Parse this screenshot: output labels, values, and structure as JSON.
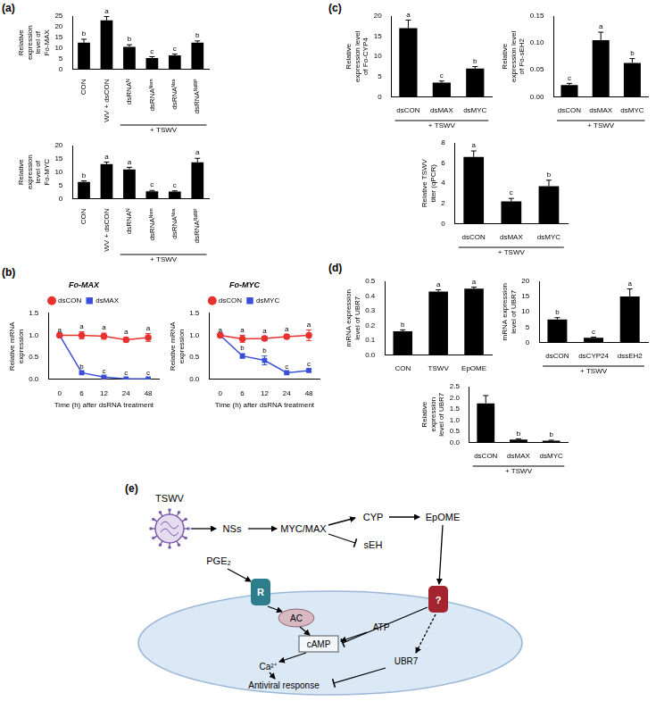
{
  "panel_labels": [
    "(a)",
    "(b)",
    "(c)",
    "(d)",
    "(e)"
  ],
  "chart_data": [
    {
      "type": "bar",
      "y_label": "Relative expression level of Fo-MAX",
      "categories": [
        "CON",
        "TSWV + dsCON",
        "dsRNAᴺ",
        "dsRNAᴺˢᵐ",
        "dsRNAᴺˢˢ",
        "dsRNAᴿᵈᴿᴾ"
      ],
      "values": [
        12.5,
        23,
        10.5,
        5.2,
        6.5,
        12.5
      ],
      "errors": [
        1.6,
        1.8,
        1.0,
        0.7,
        0.6,
        0.8
      ],
      "letters": [
        "b",
        "a",
        "b",
        "c",
        "c",
        "b"
      ],
      "group_label": {
        "text": "+ TSWV",
        "categories": [
          "dsRNAᴺ",
          "dsRNAᴺˢᵐ",
          "dsRNAᴺˢˢ",
          "dsRNAᴿᵈᴿᴾ"
        ]
      },
      "color": "#000000",
      "ylim": [
        0,
        25
      ],
      "yticks": [
        0,
        5,
        10,
        15,
        20,
        25
      ],
      "grid": false
    },
    {
      "type": "bar",
      "y_label": "Relative expression level of Fo-MYC",
      "categories": [
        "CON",
        "TSWV + dsCON",
        "dsRNAᴺ",
        "dsRNAᴺˢᵐ",
        "dsRNAᴺˢˢ",
        "dsRNAᴿᵈᴿᴾ"
      ],
      "values": [
        6.3,
        13,
        11,
        2.8,
        2.7,
        13.7
      ],
      "errors": [
        0.4,
        0.8,
        0.8,
        0.3,
        0.25,
        1.5
      ],
      "letters": [
        "b",
        "a",
        "a",
        "c",
        "c",
        "a"
      ],
      "group_label": {
        "text": "+ TSWV",
        "categories": [
          "dsRNAᴺ",
          "dsRNAᴺˢᵐ",
          "dsRNAᴺˢˢ",
          "dsRNAᴿᵈᴿᴾ"
        ]
      },
      "color": "#000000",
      "ylim": [
        0,
        20
      ],
      "yticks": [
        0,
        5,
        10,
        15,
        20
      ],
      "grid": false
    },
    {
      "type": "line",
      "title": "Fo-MAX",
      "y_label": "Relative mRNA expression",
      "x_label": "Time (h) after dsRNA treatment",
      "categories": [
        "0",
        "6",
        "12",
        "24",
        "48"
      ],
      "series": [
        {
          "name": "dsCON",
          "color": "#e8312f",
          "marker": "circle",
          "line_style": "solid",
          "values": [
            1,
            1.0,
            0.98,
            0.9,
            0.95
          ],
          "errors": [
            0,
            0.08,
            0.07,
            0.05,
            0.09
          ],
          "letters": [
            "a",
            "a",
            "a",
            "a",
            "a"
          ]
        },
        {
          "name": "dsMAX",
          "color": "#3b4fd8",
          "marker": "square",
          "line_style": "solid",
          "values": [
            1,
            0.15,
            0.05,
            0.01,
            0.01
          ],
          "errors": [
            0,
            0.02,
            0.01,
            0.005,
            0.005
          ],
          "letters": [
            null,
            "b",
            "c",
            "c",
            "c"
          ]
        }
      ],
      "ylim": [
        0,
        1.5
      ],
      "yticks": [
        {
          "value": 0,
          "label": "0.0"
        },
        0.5,
        {
          "value": 1,
          "label": "1.0"
        },
        1.5
      ],
      "legend": "top",
      "grid": false
    },
    {
      "type": "line",
      "title": "Fo-MYC",
      "y_label": "Relative mRNA expression",
      "x_label": "Time (h) after dsRNA treatment",
      "categories": [
        "0",
        "6",
        "12",
        "24",
        "48"
      ],
      "series": [
        {
          "name": "dsCON",
          "color": "#e8312f",
          "marker": "circle",
          "line_style": "solid",
          "values": [
            1,
            0.92,
            0.93,
            0.97,
            1.0
          ],
          "errors": [
            0,
            0.08,
            0.05,
            0.04,
            0.12
          ],
          "letters": [
            "a",
            "a",
            "a",
            "a",
            "a"
          ]
        },
        {
          "name": "dsMYC",
          "color": "#3b4fd8",
          "marker": "square",
          "line_style": "solid",
          "values": [
            1,
            0.53,
            0.43,
            0.15,
            0.2
          ],
          "errors": [
            0,
            0.05,
            0.1,
            0.02,
            0.03
          ],
          "letters": [
            null,
            "b",
            "b",
            "c",
            "c"
          ]
        }
      ],
      "ylim": [
        0,
        1.5
      ],
      "yticks": [
        {
          "value": 0,
          "label": "0.0"
        },
        0.5,
        {
          "value": 1,
          "label": "1.0"
        },
        1.5
      ],
      "legend": "top",
      "grid": false
    },
    {
      "type": "bar",
      "y_label": "Relative expression level of Fo-CYP4",
      "categories": [
        "dsCON",
        "dsMAX",
        "dsMYC"
      ],
      "values": [
        17,
        3.5,
        7
      ],
      "errors": [
        2,
        0.4,
        0.5
      ],
      "letters": [
        "a",
        "c",
        "b"
      ],
      "group_label": {
        "text": "+ TSWV",
        "categories": [
          "dsCON",
          "dsMAX",
          "dsMYC"
        ]
      },
      "color": "#000000",
      "ylim": [
        0,
        20
      ],
      "yticks": [
        0,
        5,
        10,
        15,
        20
      ],
      "grid": false
    },
    {
      "type": "bar",
      "y_label": "Relative expression level of Fo-sEH2",
      "categories": [
        "dsCON",
        "dsMAX",
        "dsMYC"
      ],
      "values": [
        0.022,
        0.105,
        0.063
      ],
      "errors": [
        0.003,
        0.015,
        0.008
      ],
      "letters": [
        "c",
        "a",
        "b"
      ],
      "group_label": {
        "text": "+ TSWV",
        "categories": [
          "dsCON",
          "dsMAX",
          "dsMYC"
        ]
      },
      "color": "#000000",
      "ylim": [
        0,
        0.15
      ],
      "yticks": [
        {
          "value": 0,
          "label": "0.00"
        },
        0.05,
        {
          "value": 0.1,
          "label": "0.10"
        },
        0.15
      ],
      "grid": false
    },
    {
      "type": "bar",
      "y_label": "Relative TSWV titer (qPCR)",
      "categories": [
        "dsCON",
        "dsMAX",
        "dsMYC"
      ],
      "values": [
        6.6,
        2.2,
        3.7
      ],
      "errors": [
        0.6,
        0.3,
        0.6
      ],
      "letters": [
        "a",
        "c",
        "b"
      ],
      "group_label": {
        "text": "+ TSWV",
        "categories": [
          "dsCON",
          "dsMAX",
          "dsMYC"
        ]
      },
      "color": "#000000",
      "ylim": [
        0,
        8
      ],
      "yticks": [
        0,
        2,
        4,
        6,
        8
      ],
      "grid": false
    },
    {
      "type": "bar",
      "y_label": "mRNA expression level of UBR7",
      "categories": [
        "CON",
        "TSWV",
        "EpOME"
      ],
      "values": [
        0.16,
        0.43,
        0.45
      ],
      "errors": [
        0.01,
        0.012,
        0.01
      ],
      "letters": [
        "b",
        "a",
        "a"
      ],
      "color": "#000000",
      "ylim": [
        0,
        0.5
      ],
      "yticks": [
        {
          "value": 0,
          "label": "0.0"
        },
        0.1,
        0.2,
        0.3,
        0.4,
        0.5
      ],
      "grid": false
    },
    {
      "type": "bar",
      "y_label": "mRNA expression level of UBR7",
      "categories": [
        "dsCON",
        "dsCYP24",
        "dssEH2"
      ],
      "values": [
        7.5,
        1.5,
        15
      ],
      "errors": [
        0.6,
        0.2,
        2.5
      ],
      "letters": [
        "b",
        "c",
        "a"
      ],
      "group_label": {
        "text": "+ TSWV",
        "categories": [
          "dsCON",
          "dsCYP24",
          "dssEH2"
        ]
      },
      "color": "#000000",
      "ylim": [
        0,
        20
      ],
      "yticks": [
        0,
        5,
        10,
        15,
        20
      ],
      "grid": false
    },
    {
      "type": "bar",
      "y_label": "Relative expression level of UBR7",
      "categories": [
        "dsCON",
        "dsMAX",
        "dsMYC"
      ],
      "values": [
        1.75,
        0.13,
        0.08
      ],
      "errors": [
        0.35,
        0.03,
        0.02
      ],
      "letters": [
        null,
        "b",
        "b"
      ],
      "group_label": {
        "text": "+ TSWV",
        "categories": [
          "dsCON",
          "dsMAX",
          "dsMYC"
        ]
      },
      "color": "#000000",
      "ylim": [
        0,
        2.5
      ],
      "yticks": [
        {
          "value": 0,
          "label": "0.0"
        },
        0.5,
        {
          "value": 1,
          "label": "1.0"
        },
        1.5,
        {
          "value": 2,
          "label": "2.0"
        },
        2.5
      ],
      "grid": false
    }
  ],
  "diagram": {
    "labels": {
      "virus": "TSWV",
      "nss": "NSs",
      "mycmax": "MYC/MAX",
      "cyp": "CYP",
      "seh": "sEH",
      "epome": "EpOME",
      "pge2": "PGE₂",
      "receptor": "R",
      "ac": "AC",
      "atp": "ATP",
      "camp": "cAMP",
      "ca": "Ca²⁺",
      "ubr7": "UBR7",
      "antiviral": "Antiviral response",
      "unknown": "?"
    }
  }
}
